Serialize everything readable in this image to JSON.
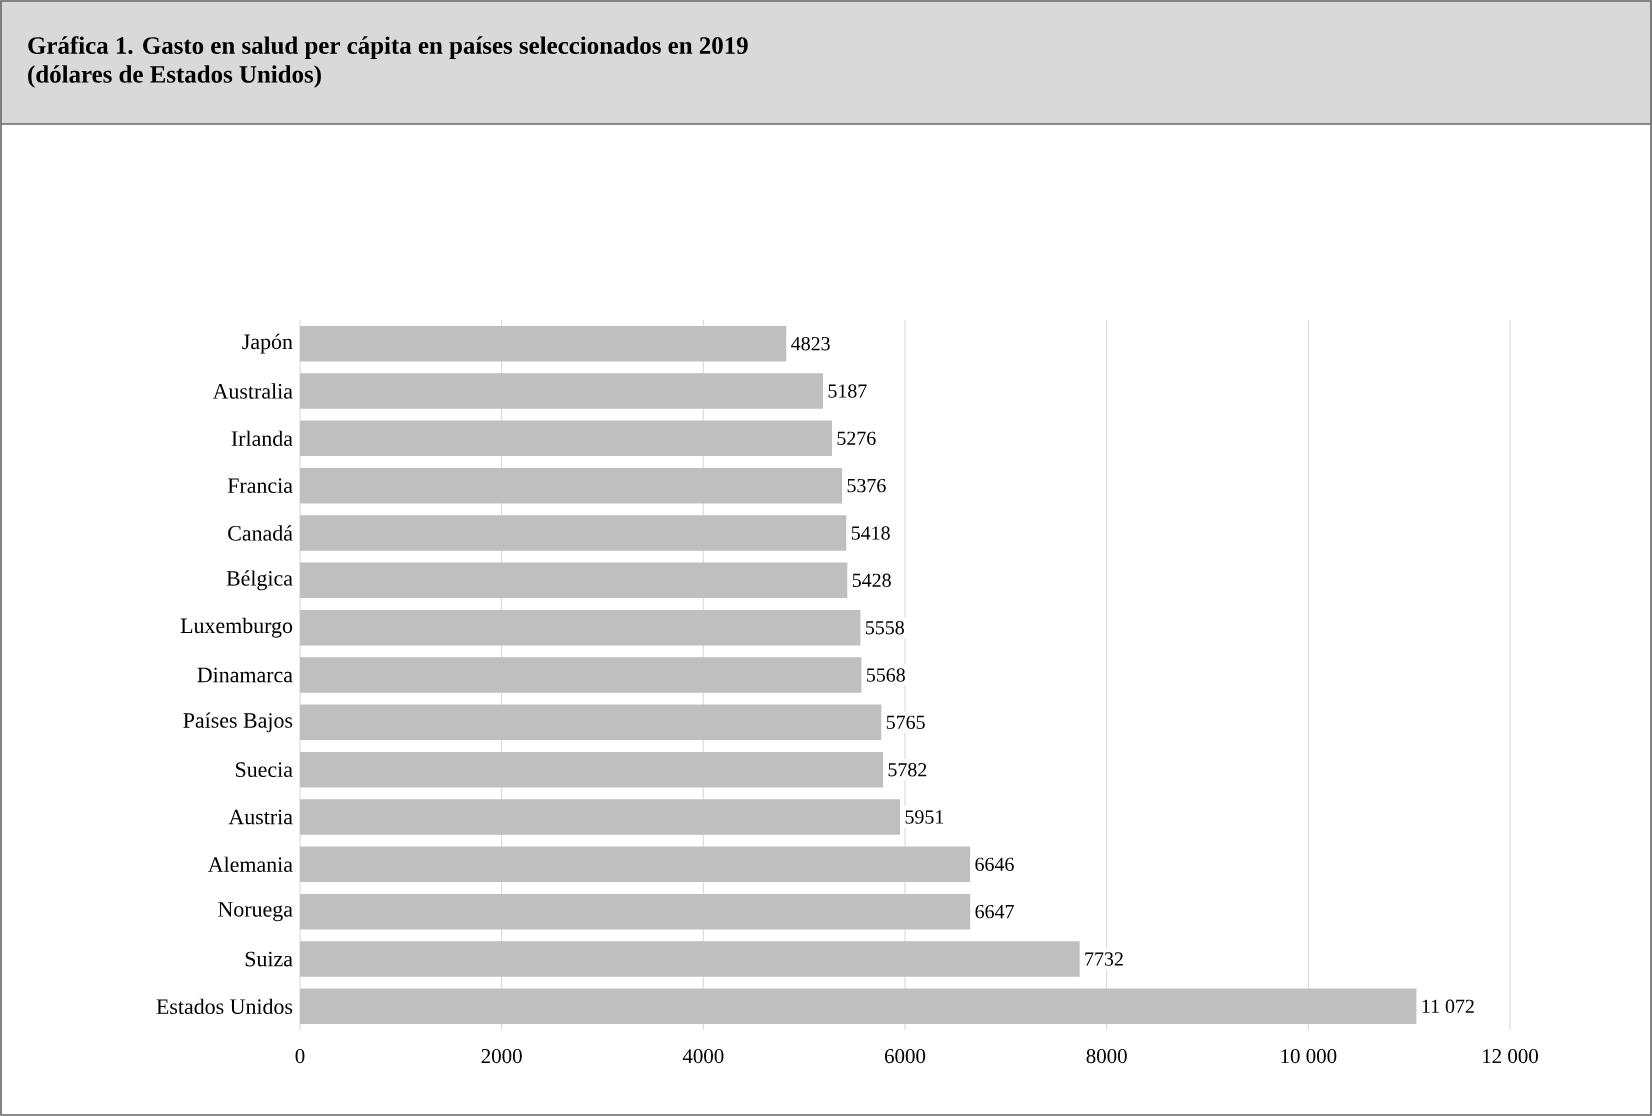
{
  "chart_data": {
    "type": "bar",
    "orientation": "horizontal",
    "title": "Gráfica 1. Gasto en salud per cápita en países seleccionados en 2019",
    "subtitle": "(dólares de Estados Unidos)",
    "categories": [
      "Japón",
      "Australia",
      "Irlanda",
      "Francia",
      "Canadá",
      "Bélgica",
      "Luxemburgo",
      "Dinamarca",
      "Países Bajos",
      "Suecia",
      "Austria",
      "Alemania",
      "Noruega",
      "Suiza",
      "Estados Unidos"
    ],
    "values": [
      4823,
      5187,
      5276,
      5376,
      5418,
      5428,
      5558,
      5568,
      5765,
      5782,
      5951,
      6646,
      6647,
      7732,
      11072
    ],
    "value_labels": [
      "4823",
      "5187",
      "5276",
      "5376",
      "5418",
      "5428",
      "5558",
      "5568",
      "5765",
      "5782",
      "5951",
      "6646",
      "6647",
      "7732",
      "11 072"
    ],
    "color": "#bfbfbf",
    "xlim": [
      0,
      12000
    ],
    "xticks": [
      0,
      2000,
      4000,
      6000,
      8000,
      {
        "value": 10000,
        "label": "10 000"
      },
      {
        "value": 12000,
        "label": "12 000"
      }
    ],
    "grid": "x"
  }
}
